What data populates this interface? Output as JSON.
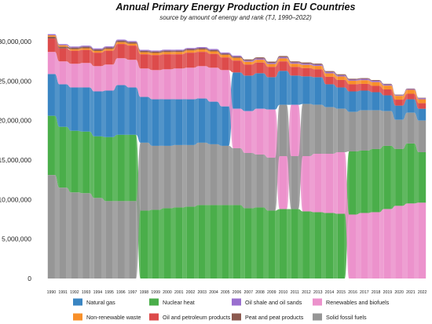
{
  "chart_data": {
    "type": "area",
    "title": "Annual Primary Energy Production in EU Countries",
    "subtitle": "source by amount of energy and rank (TJ, 1990–2022)",
    "xlabel": "",
    "ylabel": "",
    "ylim": [
      0,
      31500000
    ],
    "yticks": [
      "0",
      "5,000,000",
      "10,000,000",
      "15,000,000",
      "20,000,000",
      "25,000,000",
      "30,000,000"
    ],
    "ytick_values": [
      0,
      5000000,
      10000000,
      15000000,
      20000000,
      25000000,
      30000000
    ],
    "x": [
      "1990",
      "1991",
      "1992",
      "1993",
      "1994",
      "1995",
      "1996",
      "1997",
      "1998",
      "1999",
      "2000",
      "2001",
      "2002",
      "2003",
      "2004",
      "2005",
      "2006",
      "2007",
      "2008",
      "2009",
      "2010",
      "2011",
      "2012",
      "2013",
      "2014",
      "2015",
      "2016",
      "2017",
      "2018",
      "2019",
      "2020",
      "2021",
      "2022"
    ],
    "grid": false,
    "legend_position": "bottom",
    "legend_order": [
      "Natural gas",
      "Nuclear heat",
      "Oil shale and oil sands",
      "Renewables and biofuels",
      "Non-renewable waste",
      "Oil and petroleum products",
      "Peat and peat products",
      "Solid fossil fuels"
    ],
    "series": [
      {
        "name": "Natural gas",
        "color": "#3a85c2",
        "values": [
          5300000,
          5400000,
          5500000,
          5600000,
          5700000,
          5900000,
          6300000,
          6000000,
          5800000,
          5900000,
          5900000,
          5800000,
          5800000,
          5600000,
          5400000,
          5000000,
          4600000,
          4500000,
          4500000,
          4100000,
          4300000,
          3700000,
          3500000,
          3500000,
          2900000,
          2700000,
          2600000,
          2500000,
          2300000,
          2000000,
          1800000,
          1700000,
          1500000
        ]
      },
      {
        "name": "Nuclear heat",
        "color": "#4aae4a",
        "values": [
          7500000,
          7700000,
          7800000,
          7800000,
          7800000,
          8100000,
          8400000,
          8400000,
          8600000,
          8700000,
          8900000,
          9000000,
          9100000,
          9300000,
          9300000,
          9300000,
          9300000,
          8900000,
          9000000,
          8600000,
          8800000,
          8800000,
          8500000,
          8400000,
          8300000,
          8200000,
          8000000,
          7900000,
          8000000,
          8000000,
          7200000,
          7600000,
          6400000
        ]
      },
      {
        "name": "Oil shale and oil sands",
        "color": "#9a6fcf",
        "values": [
          150000,
          150000,
          140000,
          140000,
          140000,
          140000,
          140000,
          140000,
          130000,
          130000,
          130000,
          130000,
          130000,
          140000,
          140000,
          140000,
          140000,
          150000,
          150000,
          150000,
          160000,
          160000,
          160000,
          170000,
          170000,
          160000,
          140000,
          170000,
          170000,
          150000,
          100000,
          110000,
          140000
        ]
      },
      {
        "name": "Renewables and biofuels",
        "color": "#ec92cc",
        "values": [
          2800000,
          2900000,
          3000000,
          3100000,
          3200000,
          3300000,
          3400000,
          3500000,
          3600000,
          3700000,
          3800000,
          3900000,
          4000000,
          4100000,
          4300000,
          4600000,
          5000000,
          5300000,
          5800000,
          6100000,
          6700000,
          6500000,
          7000000,
          7400000,
          7500000,
          7800000,
          8100000,
          8300000,
          8400000,
          8800000,
          9200000,
          9500000,
          9600000
        ]
      },
      {
        "name": "Non-renewable waste",
        "color": "#f8902a",
        "values": [
          180000,
          190000,
          200000,
          210000,
          220000,
          230000,
          240000,
          250000,
          260000,
          270000,
          280000,
          290000,
          300000,
          310000,
          320000,
          330000,
          340000,
          350000,
          360000,
          370000,
          380000,
          400000,
          410000,
          420000,
          430000,
          440000,
          450000,
          460000,
          470000,
          480000,
          480000,
          500000,
          500000
        ]
      },
      {
        "name": "Oil and petroleum products",
        "color": "#dd4b4b",
        "values": [
          1700000,
          1650000,
          1650000,
          1650000,
          1700000,
          1750000,
          1800000,
          1800000,
          1800000,
          1900000,
          1900000,
          1800000,
          1900000,
          1800000,
          1750000,
          1600000,
          1500000,
          1400000,
          1350000,
          1300000,
          1200000,
          1100000,
          1050000,
          1000000,
          950000,
          950000,
          900000,
          850000,
          800000,
          750000,
          750000,
          700000,
          700000
        ]
      },
      {
        "name": "Peat and peat products",
        "color": "#8c5a50",
        "values": [
          220000,
          200000,
          190000,
          190000,
          180000,
          180000,
          180000,
          180000,
          170000,
          170000,
          170000,
          160000,
          160000,
          160000,
          160000,
          150000,
          150000,
          150000,
          150000,
          150000,
          140000,
          140000,
          140000,
          130000,
          120000,
          120000,
          110000,
          100000,
          90000,
          80000,
          60000,
          50000,
          50000
        ]
      },
      {
        "name": "Solid fossil fuels",
        "color": "#969696",
        "values": [
          13100000,
          11500000,
          10900000,
          10800000,
          10200000,
          9800000,
          9800000,
          9800000,
          8600000,
          8100000,
          7900000,
          7900000,
          7800000,
          7900000,
          7700000,
          7500000,
          7200000,
          7000000,
          6700000,
          6700000,
          6500000,
          6700000,
          6600000,
          6200000,
          5900000,
          5500000,
          5000000,
          5100000,
          4900000,
          4400000,
          3700000,
          3900000,
          4000000
        ]
      }
    ]
  }
}
